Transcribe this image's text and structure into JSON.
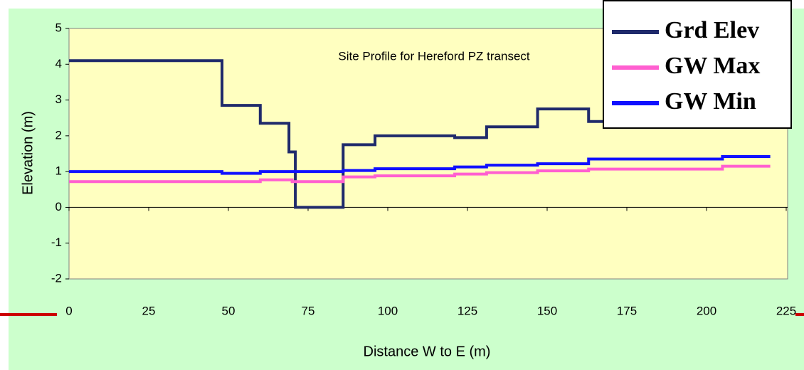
{
  "chart_data": {
    "type": "line",
    "title": "Site Profile for Hereford PZ transect",
    "x_label": "Distance W to E (m)",
    "y_label": "Elevation (m)",
    "xlim": [
      0,
      225
    ],
    "xticks": [
      0,
      25,
      50,
      75,
      100,
      125,
      150,
      175,
      200,
      225
    ],
    "ylim": [
      -2,
      5
    ],
    "yticks": [
      -2,
      -1,
      0,
      1,
      2,
      3,
      4,
      5
    ],
    "legend": "top-right",
    "series": [
      {
        "name": "Grd Elev",
        "color": "#1f2a6b",
        "x": [
          0,
          48,
          48,
          60,
          60,
          69,
          69,
          71,
          71,
          86,
          86,
          96,
          96,
          121,
          121,
          131,
          131,
          147,
          147,
          163,
          163,
          175
        ],
        "values": [
          4.1,
          4.1,
          2.85,
          2.85,
          2.35,
          2.35,
          1.55,
          1.55,
          0,
          0,
          1.75,
          1.75,
          2.0,
          2.0,
          1.95,
          1.95,
          2.25,
          2.25,
          2.75,
          2.75,
          2.4,
          2.4
        ]
      },
      {
        "name": "GW Max",
        "color": "#ff5fd0",
        "x": [
          0,
          60,
          60,
          70,
          70,
          86,
          86,
          96,
          96,
          121,
          121,
          131,
          131,
          147,
          147,
          163,
          163,
          205,
          205,
          220
        ],
        "values": [
          0.72,
          0.72,
          0.77,
          0.77,
          0.72,
          0.72,
          0.85,
          0.85,
          0.88,
          0.88,
          0.93,
          0.93,
          0.97,
          0.97,
          1.02,
          1.02,
          1.07,
          1.07,
          1.15,
          1.15
        ]
      },
      {
        "name": "GW Min",
        "color": "#1010ff",
        "x": [
          0,
          48,
          48,
          60,
          60,
          86,
          86,
          96,
          96,
          121,
          121,
          131,
          131,
          147,
          147,
          163,
          163,
          205,
          205,
          220
        ],
        "values": [
          1.0,
          1.0,
          0.95,
          0.95,
          1.0,
          1.0,
          1.03,
          1.03,
          1.08,
          1.08,
          1.13,
          1.13,
          1.18,
          1.18,
          1.22,
          1.22,
          1.35,
          1.35,
          1.42,
          1.42
        ]
      }
    ]
  }
}
